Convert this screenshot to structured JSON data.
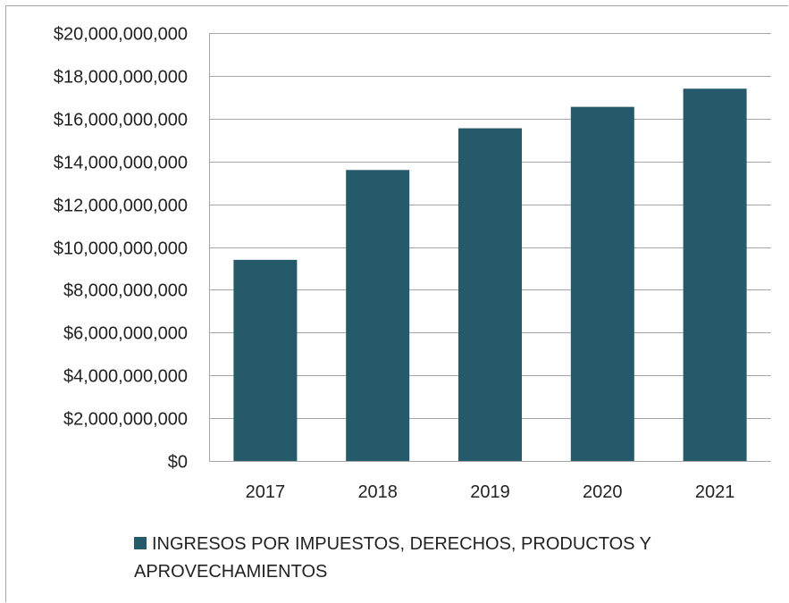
{
  "chart_data": {
    "type": "bar",
    "title": "",
    "xlabel": "",
    "ylabel": "",
    "categories": [
      "2017",
      "2018",
      "2019",
      "2020",
      "2021"
    ],
    "series": [
      {
        "name": "INGRESOS POR IMPUESTOS, DERECHOS, PRODUCTOS Y APROVECHAMIENTOS",
        "values": [
          9400000000,
          13600000000,
          15550000000,
          16550000000,
          17400000000
        ]
      }
    ],
    "ylim": [
      0,
      20000000000
    ],
    "yticks": [
      0,
      2000000000,
      4000000000,
      6000000000,
      8000000000,
      10000000000,
      12000000000,
      14000000000,
      16000000000,
      18000000000,
      20000000000
    ],
    "ytick_labels": [
      "$0",
      "$2,000,000,000",
      "$4,000,000,000",
      "$6,000,000,000",
      "$8,000,000,000",
      "$10,000,000,000",
      "$12,000,000,000",
      "$14,000,000,000",
      "$16,000,000,000",
      "$18,000,000,000",
      "$20,000,000,000"
    ],
    "grid": true,
    "legend": "bottom",
    "colors": {
      "bar": "#245a6a",
      "grid": "#a6a6a6"
    }
  },
  "legend": {
    "label": "INGRESOS POR IMPUESTOS, DERECHOS, PRODUCTOS Y APROVECHAMIENTOS"
  }
}
